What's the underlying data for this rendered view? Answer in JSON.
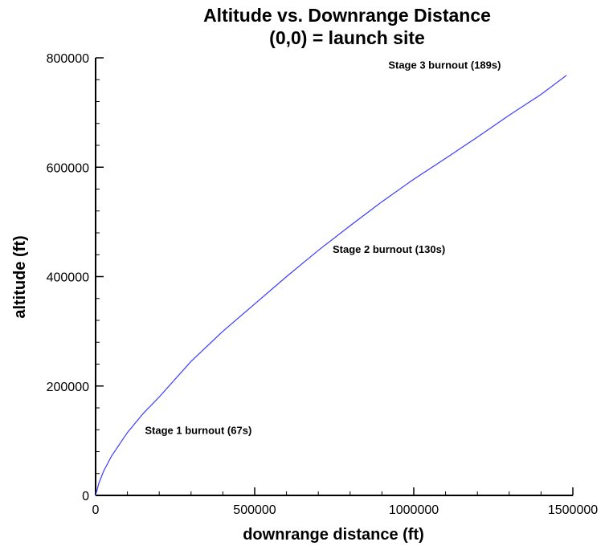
{
  "chart_data": {
    "type": "line",
    "title": "Altitude vs. Downrange Distance",
    "subtitle": "(0,0) = launch site",
    "xlabel": "downrange distance (ft)",
    "ylabel": "altitude (ft)",
    "xlim": [
      0,
      1500000
    ],
    "ylim": [
      0,
      800000
    ],
    "x_ticks": [
      0,
      500000,
      1000000,
      1500000
    ],
    "x_tick_labels": [
      "0",
      "500000",
      "1000000",
      "1500000"
    ],
    "y_ticks": [
      0,
      200000,
      400000,
      600000,
      800000
    ],
    "y_tick_labels": [
      "0",
      "200000",
      "400000",
      "600000",
      "800000"
    ],
    "grid": false,
    "series": [
      {
        "color": "#3a3aff",
        "x": [
          0,
          10000,
          25000,
          50000,
          100000,
          150000,
          200000,
          300000,
          400000,
          500000,
          600000,
          700000,
          800000,
          900000,
          1000000,
          1100000,
          1200000,
          1300000,
          1400000,
          1480000
        ],
        "y": [
          0,
          22000,
          44000,
          72000,
          115000,
          150000,
          180000,
          245000,
          300000,
          350000,
          400000,
          448000,
          493000,
          537000,
          578000,
          616000,
          655000,
          695000,
          733000,
          768000
        ]
      }
    ],
    "annotations": [
      {
        "text": "Stage 1 burnout (67s)",
        "x": 155000,
        "y": 112000
      },
      {
        "text": "Stage 2 burnout (130s)",
        "x": 745000,
        "y": 443000
      },
      {
        "text": "Stage 3 burnout (189s)",
        "x": 920000,
        "y": 780000
      }
    ]
  }
}
